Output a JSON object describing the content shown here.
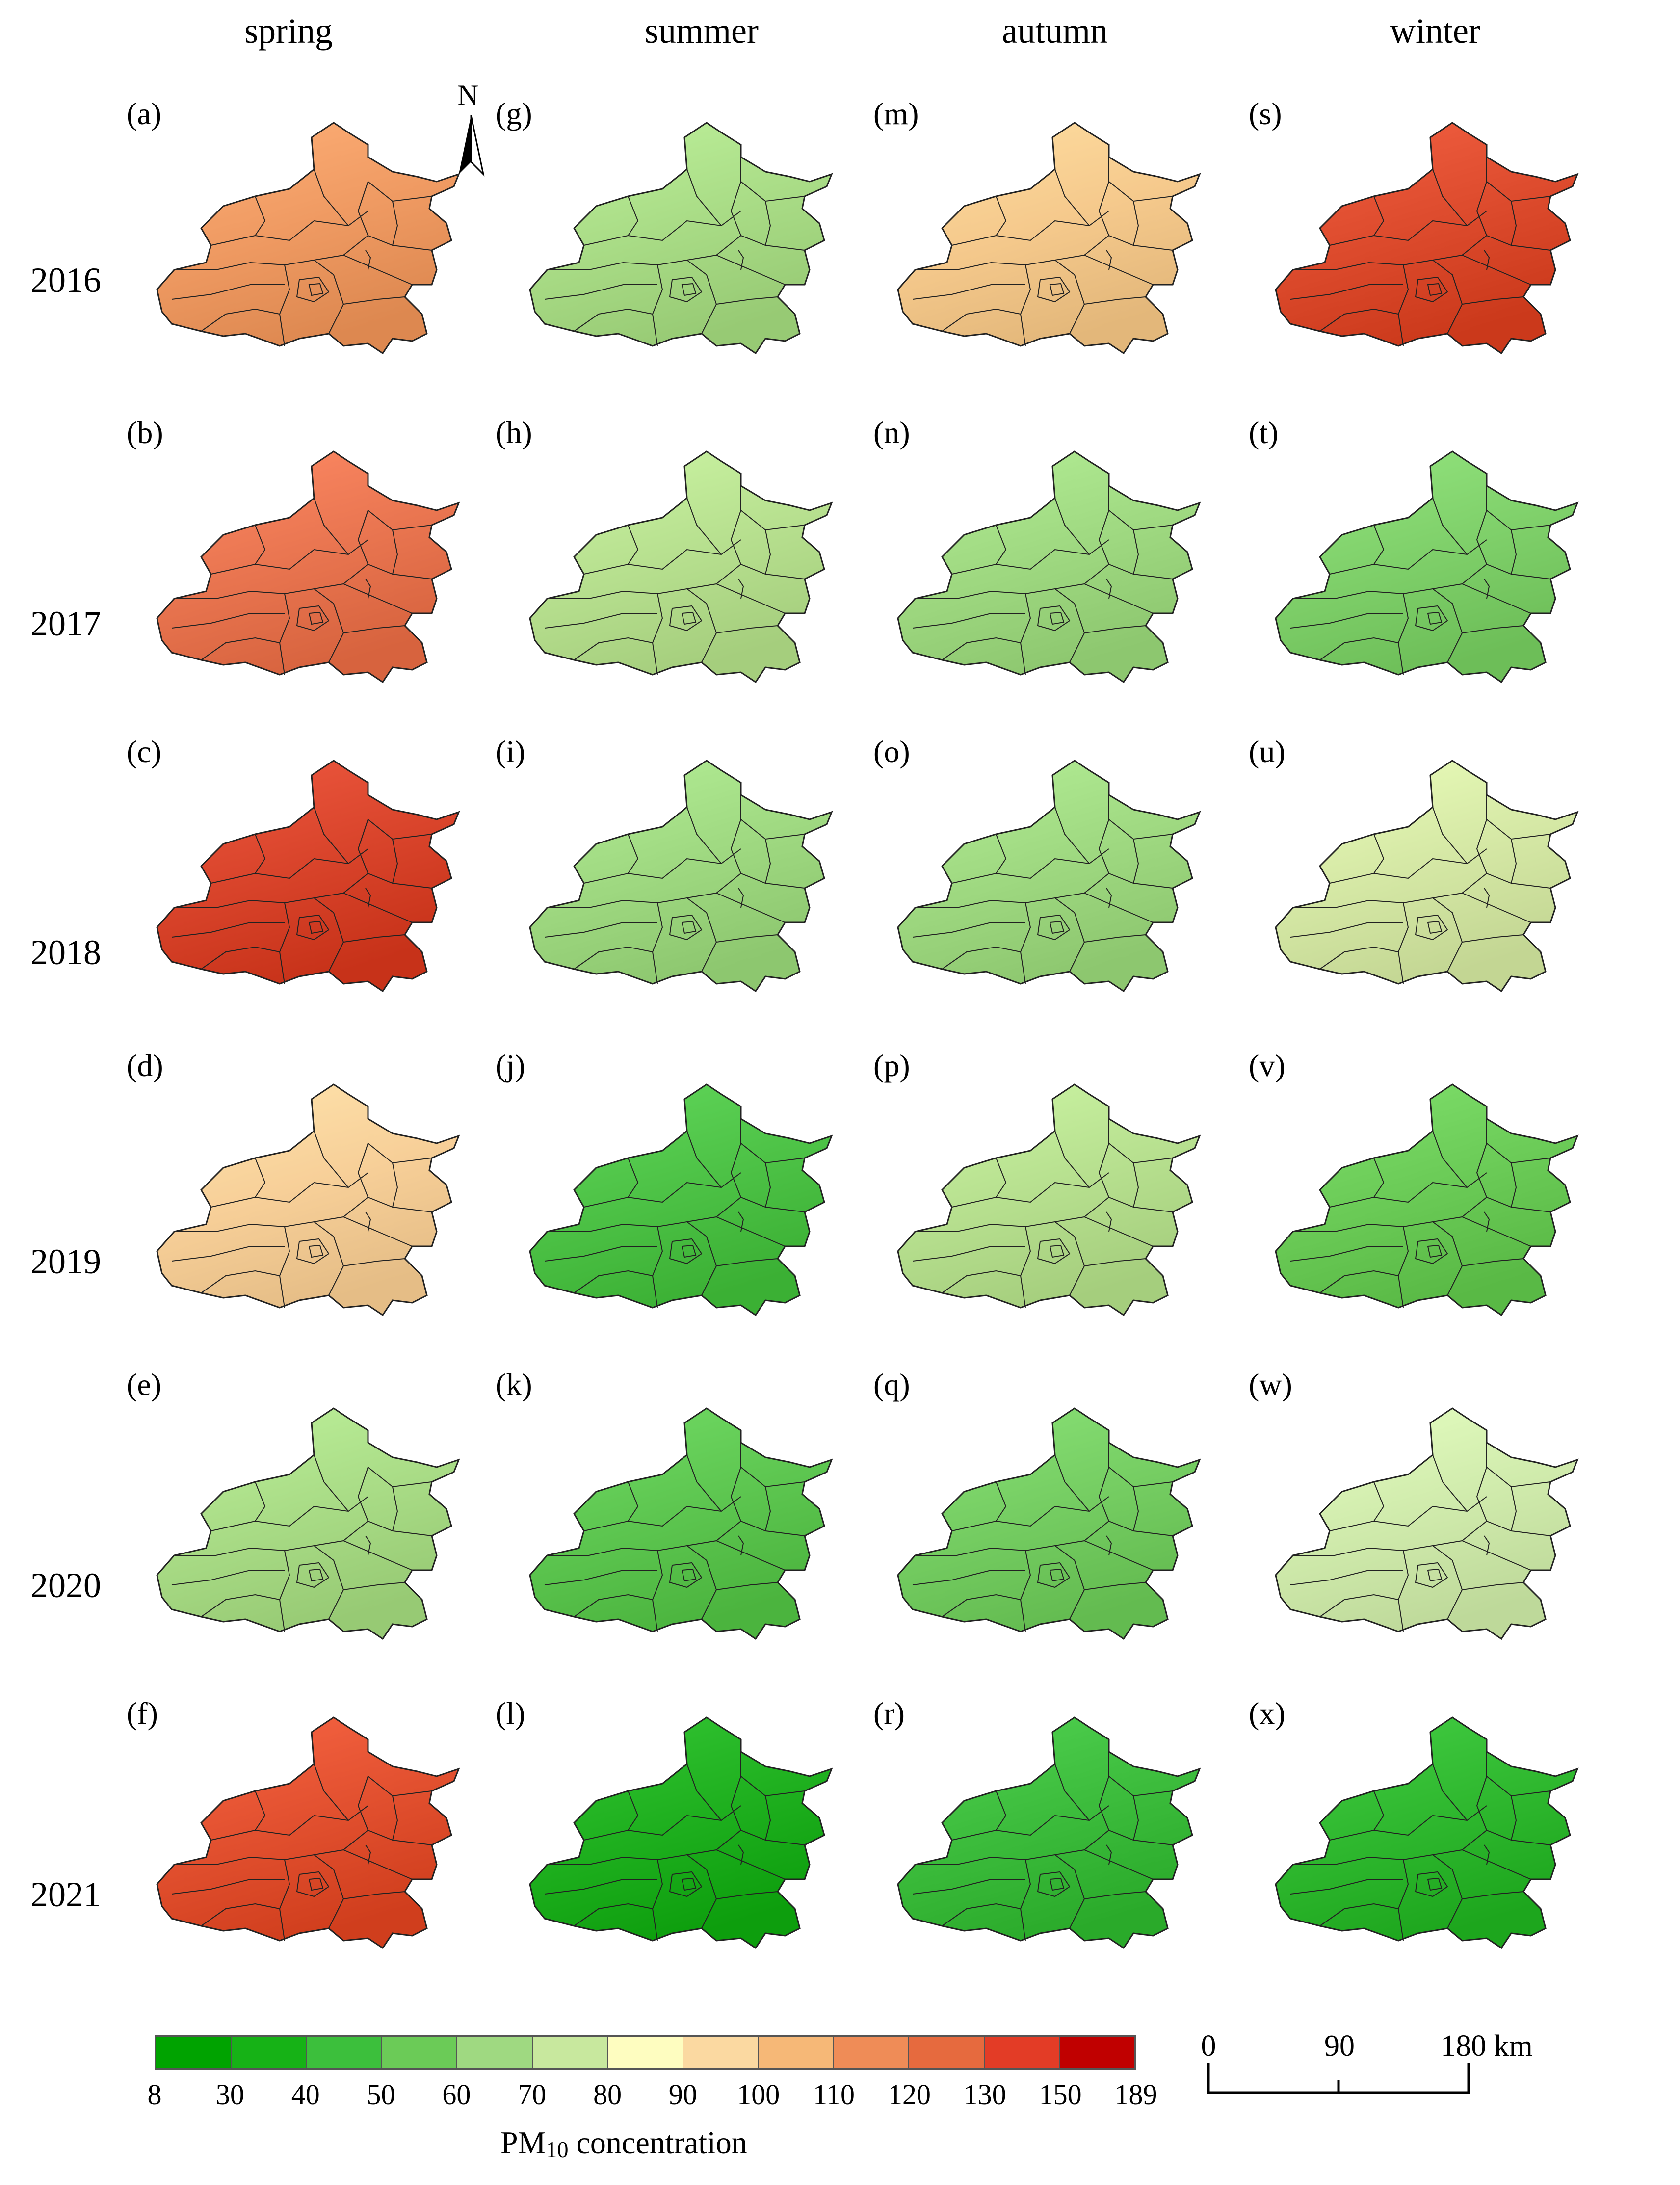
{
  "seasons": [
    "spring",
    "summer",
    "autumn",
    "winter"
  ],
  "years": [
    "2016",
    "2017",
    "2018",
    "2019",
    "2020",
    "2021"
  ],
  "north_label": "N",
  "panel_labels": [
    [
      "(a)",
      "(g)",
      "(m)",
      "(s)"
    ],
    [
      "(b)",
      "(h)",
      "(n)",
      "(t)"
    ],
    [
      "(c)",
      "(i)",
      "(o)",
      "(u)"
    ],
    [
      "(d)",
      "(j)",
      "(p)",
      "(v)"
    ],
    [
      "(e)",
      "(k)",
      "(q)",
      "(w)"
    ],
    [
      "(f)",
      "(l)",
      "(r)",
      "(x)"
    ]
  ],
  "legend": {
    "title_main": "PM",
    "title_sub": "10",
    "title_rest": " concentration",
    "ticks": [
      "8",
      "30",
      "40",
      "50",
      "60",
      "70",
      "80",
      "90",
      "100",
      "110",
      "120",
      "130",
      "150",
      "189"
    ],
    "colors": [
      "#00a300",
      "#16b216",
      "#3cbf3c",
      "#6bcb57",
      "#9fd981",
      "#c8e89e",
      "#fefdc0",
      "#fbd9a1",
      "#f6b877",
      "#ef8c57",
      "#e66a3e",
      "#e33c26",
      "#c00000"
    ]
  },
  "scale_bar": {
    "ticks": [
      "0",
      "90",
      "180 km"
    ]
  },
  "map_colors": [
    [
      "#ef9a62",
      "#a9dc86",
      "#f5c98c",
      "#dd4b2d"
    ],
    [
      "#e97550",
      "#b7e08f",
      "#9fd981",
      "#7fd06a"
    ],
    [
      "#d9442b",
      "#9fd981",
      "#9fd981",
      "#d5e8a5"
    ],
    [
      "#f7cf98",
      "#4dc246",
      "#b7e08f",
      "#6bcb57"
    ],
    [
      "#a9dc86",
      "#5dc650",
      "#75cd62",
      "#d0ebac"
    ],
    [
      "#e2502f",
      "#1fb01f",
      "#3cbc3c",
      "#2fb82f"
    ]
  ]
}
